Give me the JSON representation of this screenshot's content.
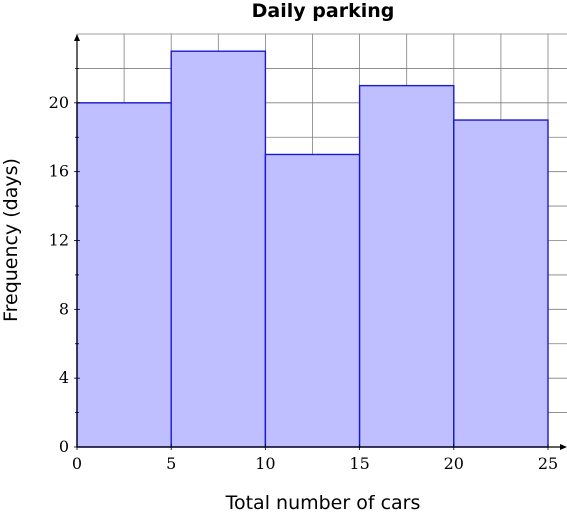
{
  "chart_data": {
    "type": "bar",
    "title": "Daily parking",
    "xlabel": "Total number of cars",
    "ylabel": "Frequency (days)",
    "bins": [
      [
        0,
        5
      ],
      [
        5,
        10
      ],
      [
        10,
        15
      ],
      [
        15,
        20
      ],
      [
        20,
        25
      ]
    ],
    "values": [
      20,
      23,
      17,
      21,
      19
    ],
    "xlim": [
      0,
      25
    ],
    "ylim": [
      0,
      24
    ],
    "x_ticks": [
      "0",
      "5",
      "10",
      "15",
      "20",
      "25"
    ],
    "y_ticks": [
      "0",
      "4",
      "8",
      "12",
      "16",
      "20"
    ],
    "grid": true,
    "colors": {
      "fill": "#bfbfff",
      "stroke": "#1a1acc"
    }
  }
}
